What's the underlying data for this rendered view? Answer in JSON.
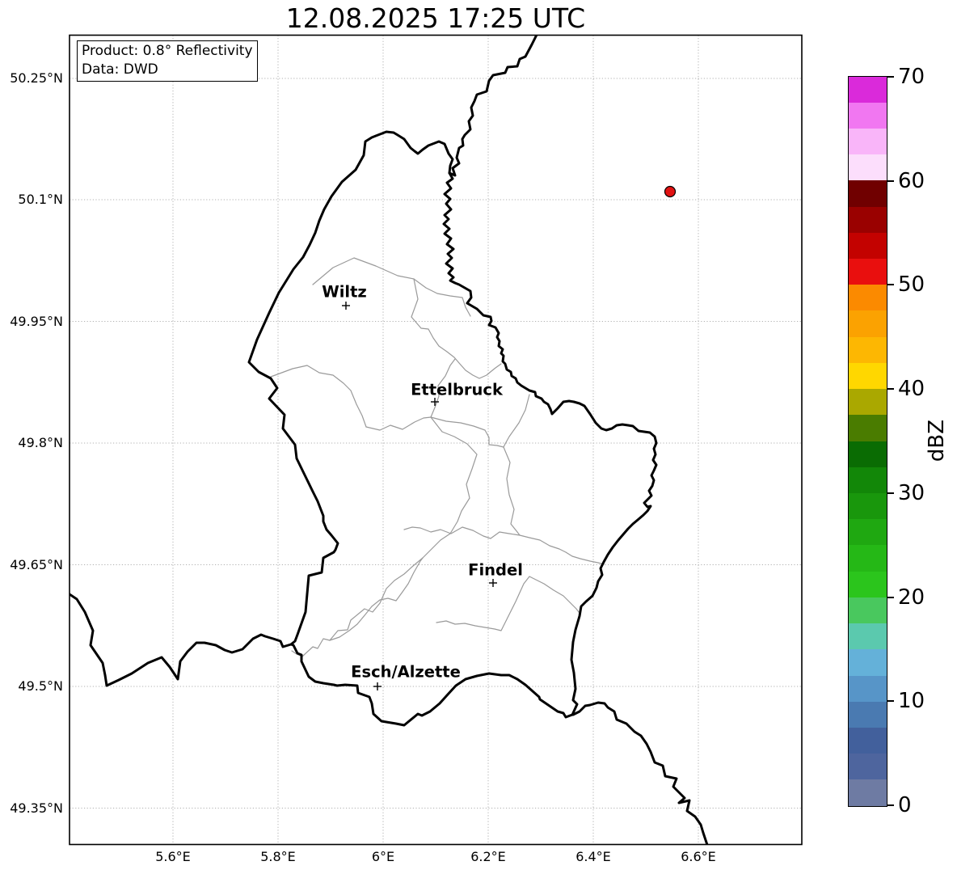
{
  "title": "12.08.2025 17:25 UTC",
  "info_box": {
    "product": "Product: 0.8° Reflectivity",
    "source": "Data: DWD"
  },
  "axes": {
    "xtick_labels": [
      "5.6°E",
      "5.8°E",
      "6°E",
      "6.2°E",
      "6.4°E",
      "6.6°E"
    ],
    "ytick_labels": [
      "50.25°N",
      "50.1°N",
      "49.95°N",
      "49.8°N",
      "49.65°N",
      "49.5°N",
      "49.35°N"
    ]
  },
  "cities": {
    "wiltz": "Wiltz",
    "ettelbruck": "Ettelbruck",
    "findel": "Findel",
    "esch": "Esch/Alzette"
  },
  "colorbar": {
    "label": "dBZ",
    "tick_labels_top_to_bottom": [
      "70",
      "60",
      "50",
      "40",
      "30",
      "20",
      "10",
      "0"
    ],
    "segment_colors_bottom_to_top": [
      "#6e7ba3",
      "#4e659e",
      "#42609c",
      "#4a7ab1",
      "#5795c8",
      "#64b1d9",
      "#5bc9ae",
      "#49c85e",
      "#2bc51c",
      "#25b816",
      "#1fa811",
      "#19970c",
      "#128708",
      "#0a6c03",
      "#4a7c00",
      "#aaa800",
      "#ffd700",
      "#fdb702",
      "#fba201",
      "#fb8a00",
      "#e90f0e",
      "#c30200",
      "#9a0100",
      "#700000",
      "#fcdefc",
      "#f9b5f9",
      "#f177f1",
      "#da2ada"
    ]
  },
  "map": {
    "country_border_color": "#000000",
    "district_line_color": "#9a9a9a",
    "radar_point": {
      "color": "#e11212",
      "approx_position": "6.55°E 50.11°N"
    }
  }
}
